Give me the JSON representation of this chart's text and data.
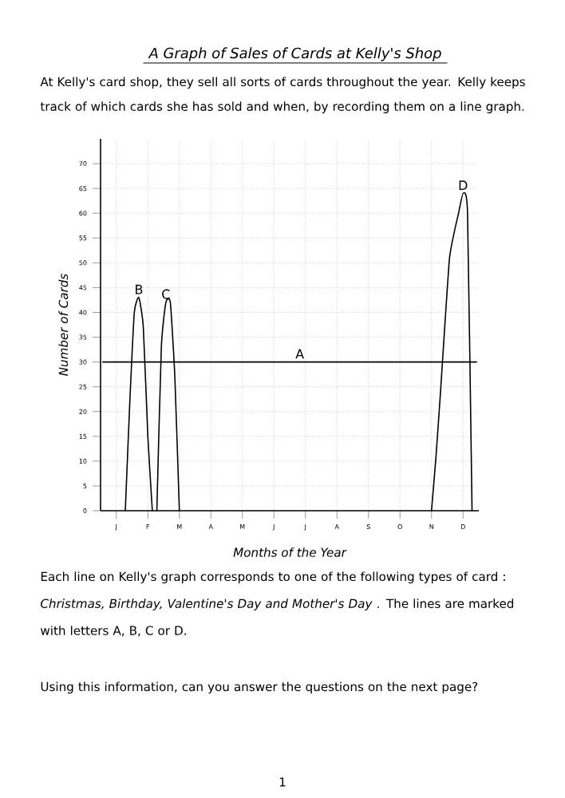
{
  "chart_data": {
    "type": "line",
    "title": "A Graph of Sales of Cards at Kelly's Shop",
    "subtitle": "At Kelly's card shop, they sell all sorts of cards throughout the year.  Kelly keeps track of which cards she has sold and when, by recording them on a line graph.",
    "xlabel": "Months of the Year",
    "ylabel": "Number of Cards",
    "annotations": [
      "Each line on Kelly's graph corresponds to one of the following types of card : *Christmas, Birthday, Valentine's Day and Mother's Day* .  The lines are marked with letters A, B, C or D.",
      "Using this information, can you answer the questions on the next page?",
      "1"
    ],
    "categories": [
      null,
      null,
      null,
      "J",
      null,
      null,
      null,
      null,
      null,
      null,
      "F",
      null,
      null,
      null,
      null,
      null,
      null,
      "M",
      null,
      null,
      null,
      null,
      null,
      null,
      "A",
      null,
      null,
      null,
      null,
      null,
      null,
      "M",
      null,
      null,
      null,
      null,
      null,
      null,
      "J",
      null,
      null,
      null,
      null,
      null,
      null,
      "J",
      null,
      null,
      null,
      null,
      null,
      null,
      "A",
      null,
      null,
      null,
      null,
      null,
      null,
      "S",
      null,
      null,
      null,
      null,
      null,
      null,
      "O",
      null,
      null,
      null,
      null,
      null,
      null,
      "N",
      null,
      null,
      null,
      null,
      null,
      null,
      "D",
      null,
      null,
      null
    ],
    "ylim": [
      0,
      75
    ],
    "yticks": [
      0,
      5,
      10,
      15,
      20,
      25,
      30,
      35,
      40,
      45,
      50,
      55,
      60,
      65,
      70
    ],
    "grid": true,
    "legend": false,
    "marker": "none",
    "line_style": "solid",
    "series": [
      {
        "name": "A",
        "color": "#000000",
        "values": [
          30,
          30,
          30,
          30,
          30,
          30,
          30,
          30,
          30,
          30,
          30,
          30,
          30,
          30,
          30,
          30,
          30,
          30,
          30,
          30,
          30,
          30,
          30,
          30,
          30,
          30,
          30,
          30,
          30,
          30,
          30,
          30,
          30,
          30,
          30,
          30,
          30,
          30,
          30,
          30,
          30,
          30,
          30,
          30,
          30,
          30,
          30,
          30,
          30,
          30,
          30,
          30,
          30,
          30,
          30,
          30,
          30,
          30,
          30,
          30,
          30,
          30,
          30,
          30,
          30,
          30,
          30,
          30,
          30,
          30,
          30,
          30,
          30,
          30,
          30,
          30,
          30,
          30,
          30,
          30,
          30,
          30,
          30,
          30
        ]
      },
      {
        "name": "B",
        "color": "#000000",
        "values": [
          null,
          null,
          null,
          null,
          null,
          0,
          22,
          40,
          43,
          37,
          15,
          0,
          null,
          null,
          null,
          null,
          null,
          null,
          null,
          null,
          null,
          null,
          null,
          null,
          null,
          null,
          null,
          null,
          null,
          null,
          null,
          null,
          null,
          null,
          null,
          null,
          null,
          null,
          null,
          null,
          null,
          null,
          null,
          null,
          null,
          null,
          null,
          null,
          null,
          null,
          null,
          null,
          null,
          null,
          null,
          null,
          null,
          null,
          null,
          null,
          null,
          null,
          null,
          null,
          null,
          null,
          null,
          null,
          null,
          null,
          null,
          null,
          null,
          null,
          null,
          null,
          null,
          null,
          null,
          null,
          null,
          null,
          null,
          null
        ]
      },
      {
        "name": "C",
        "color": "#000000",
        "values": [
          null,
          null,
          null,
          null,
          null,
          null,
          null,
          null,
          null,
          null,
          null,
          null,
          0,
          33,
          42,
          42,
          27,
          0,
          null,
          null,
          null,
          null,
          null,
          null,
          null,
          null,
          null,
          null,
          null,
          null,
          null,
          null,
          null,
          null,
          null,
          null,
          null,
          null,
          null,
          null,
          null,
          null,
          null,
          null,
          null,
          null,
          null,
          null,
          null,
          null,
          null,
          null,
          null,
          null,
          null,
          null,
          null,
          null,
          null,
          null,
          null,
          null,
          null,
          null,
          null,
          null,
          null,
          null,
          null,
          null,
          null,
          null,
          null,
          null,
          null,
          null,
          null,
          null,
          null,
          null,
          null,
          null,
          null,
          null
        ]
      },
      {
        "name": "D",
        "color": "#000000",
        "values": [
          null,
          null,
          null,
          null,
          null,
          null,
          null,
          null,
          null,
          null,
          null,
          null,
          null,
          null,
          null,
          null,
          null,
          null,
          null,
          null,
          null,
          null,
          null,
          null,
          null,
          null,
          null,
          null,
          null,
          null,
          null,
          null,
          null,
          null,
          null,
          null,
          null,
          null,
          null,
          null,
          null,
          null,
          null,
          null,
          null,
          null,
          null,
          null,
          null,
          null,
          null,
          null,
          null,
          null,
          null,
          null,
          null,
          null,
          null,
          null,
          null,
          null,
          null,
          null,
          null,
          null,
          null,
          null,
          null,
          null,
          null,
          null,
          null,
          0,
          11,
          24,
          38,
          51,
          56,
          60,
          64,
          60,
          0,
          null
        ]
      }
    ]
  }
}
